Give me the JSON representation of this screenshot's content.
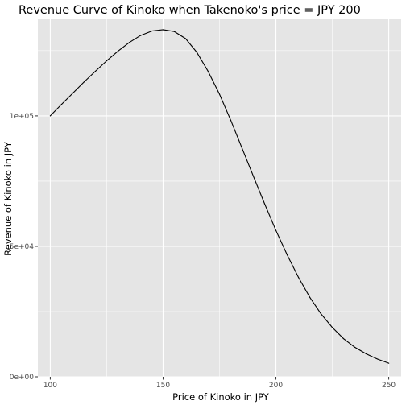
{
  "chart_data": {
    "type": "line",
    "title": "Revenue Curve of Kinoko when Takenoko's price = JPY 200",
    "xlabel": "Price of Kinoko in JPY",
    "ylabel": "Revenue of Kinoko in JPY",
    "xlim": [
      94.5,
      255.5
    ],
    "ylim": [
      0,
      137000
    ],
    "x_ticks": [
      100,
      150,
      200,
      250
    ],
    "x_tick_labels": [
      "100",
      "150",
      "200",
      "250"
    ],
    "y_ticks": [
      0,
      50000,
      100000
    ],
    "y_tick_labels": [
      "0e+00",
      "5e+04",
      "1e+05"
    ],
    "grid": true,
    "legend": "none",
    "colors": {
      "panel_background": "#e5e5e5",
      "grid_major": "#ffffff",
      "line": "#000000",
      "text": "#000000",
      "tick_text": "#4d4d4d",
      "tick_mark": "#333333"
    },
    "series": [
      {
        "x": [
          100,
          105,
          110,
          115,
          120,
          125,
          130,
          135,
          140,
          145,
          150,
          155,
          160,
          165,
          170,
          175,
          180,
          185,
          190,
          195,
          200,
          205,
          210,
          215,
          220,
          225,
          230,
          235,
          240,
          245,
          250
        ],
        "y": [
          100000,
          104400,
          108700,
          113000,
          117100,
          121100,
          124800,
          128100,
          130800,
          132500,
          133000,
          132300,
          129600,
          124300,
          117000,
          108300,
          98300,
          87600,
          76900,
          66300,
          56100,
          46700,
          38100,
          30500,
          24100,
          18900,
          14600,
          11300,
          8800,
          6800,
          5200
        ]
      }
    ]
  }
}
